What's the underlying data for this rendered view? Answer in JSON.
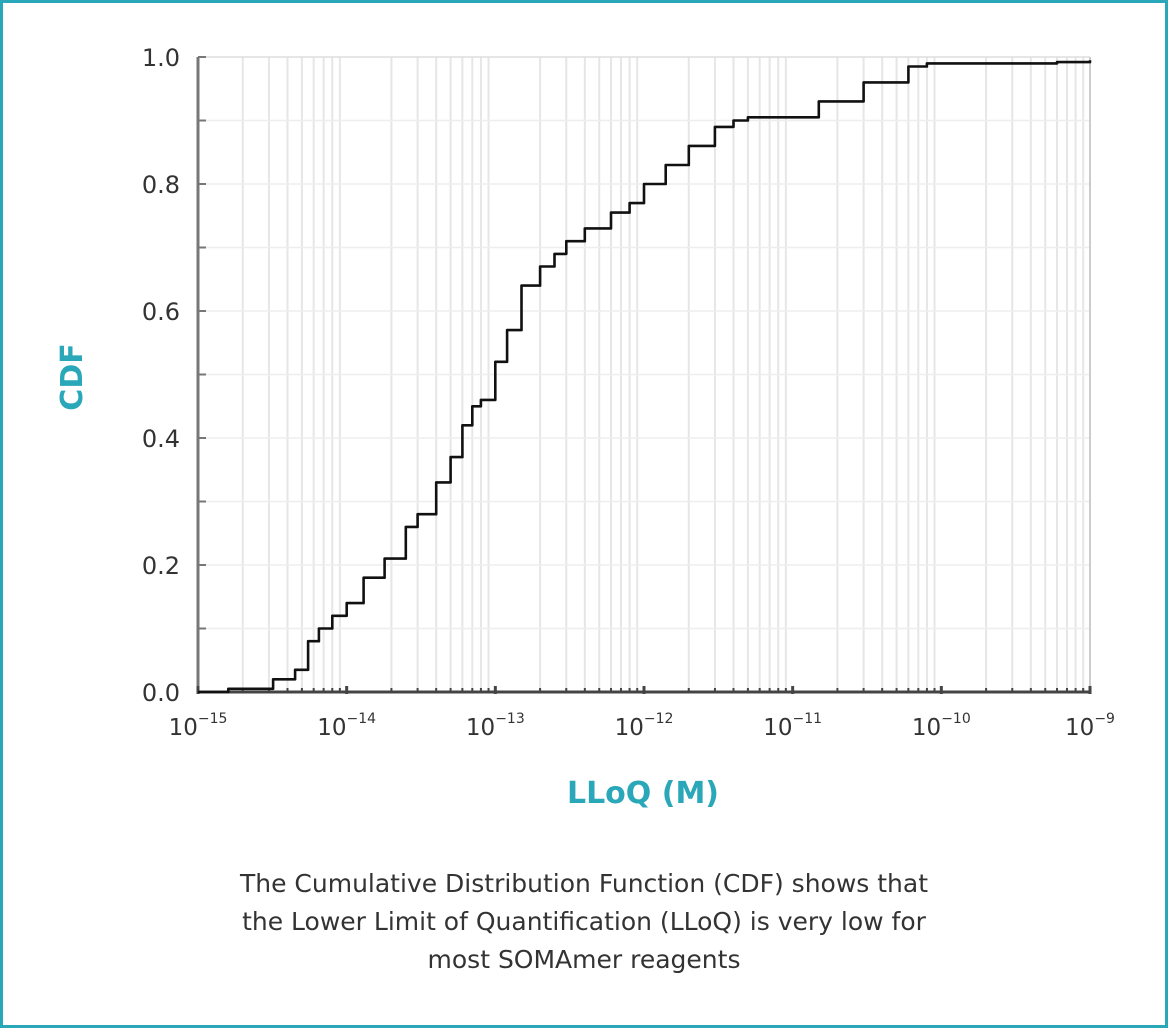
{
  "colors": {
    "accent": "#2aa7b8",
    "line": "#111111",
    "axis": "#777777",
    "grid": "#e6e6e6",
    "text": "#333333"
  },
  "caption": {
    "line1": "The Cumulative Distribution Function (CDF) shows that",
    "line2": "the Lower Limit of Quantification (LLoQ) is very low for",
    "line3": "most SOMAmer reagents"
  },
  "chart_data": {
    "type": "line",
    "title": "",
    "xlabel": "LLoQ (M)",
    "ylabel": "CDF",
    "xscale": "log",
    "xlim": [
      1e-15,
      1e-09
    ],
    "ylim": [
      0,
      1
    ],
    "grid": true,
    "x_ticks": [
      {
        "base": "10",
        "exp": "−15",
        "value": 1e-15
      },
      {
        "base": "10",
        "exp": "−14",
        "value": 1e-14
      },
      {
        "base": "10",
        "exp": "−13",
        "value": 1e-13
      },
      {
        "base": "10",
        "exp": "−12",
        "value": 1e-12
      },
      {
        "base": "10",
        "exp": "−11",
        "value": 1e-11
      },
      {
        "base": "10",
        "exp": "−10",
        "value": 1e-10
      },
      {
        "base": "10",
        "exp": "−9",
        "value": 1e-09
      }
    ],
    "y_ticks": [
      {
        "label": "0.0",
        "value": 0.0
      },
      {
        "label": "0.2",
        "value": 0.2
      },
      {
        "label": "0.4",
        "value": 0.4
      },
      {
        "label": "0.6",
        "value": 0.6
      },
      {
        "label": "0.8",
        "value": 0.8
      },
      {
        "label": "1.0",
        "value": 1.0
      }
    ],
    "series": [
      {
        "x": [
          1e-15,
          1.6e-15,
          2.5e-15,
          3.2e-15,
          4.5e-15,
          5.5e-15,
          6.5e-15,
          8e-15,
          1e-14,
          1.3e-14,
          1.8e-14,
          2.5e-14,
          3e-14,
          4e-14,
          5e-14,
          6e-14,
          7e-14,
          8e-14,
          1e-13,
          1.2e-13,
          1.5e-13,
          2e-13,
          2.5e-13,
          3e-13,
          4e-13,
          6e-13,
          8e-13,
          1e-12,
          1.4e-12,
          2e-12,
          3e-12,
          4e-12,
          5e-12,
          8e-12,
          1.5e-11,
          3e-11,
          6e-11,
          8e-11,
          1e-10,
          4e-10,
          6e-10,
          1e-09
        ],
        "y": [
          0.0,
          0.005,
          0.005,
          0.02,
          0.035,
          0.08,
          0.1,
          0.12,
          0.14,
          0.18,
          0.21,
          0.26,
          0.28,
          0.33,
          0.37,
          0.42,
          0.45,
          0.46,
          0.52,
          0.57,
          0.64,
          0.67,
          0.69,
          0.71,
          0.73,
          0.755,
          0.77,
          0.8,
          0.83,
          0.86,
          0.89,
          0.9,
          0.905,
          0.905,
          0.93,
          0.96,
          0.985,
          0.99,
          0.99,
          0.99,
          0.992,
          0.995
        ]
      }
    ]
  }
}
